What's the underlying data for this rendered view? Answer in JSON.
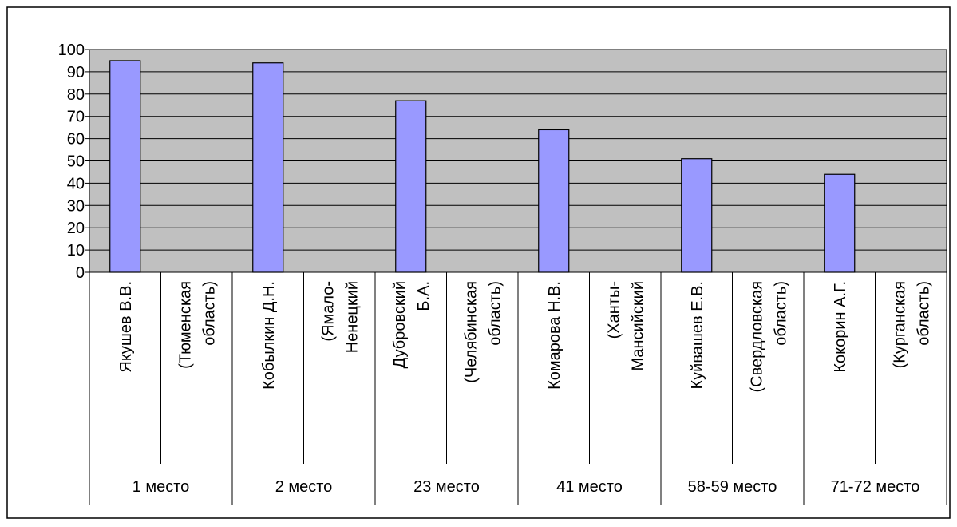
{
  "chart_data": {
    "type": "bar",
    "categories": [
      "Якушев В.В.",
      "(Тюменская область)",
      "Кобылкин Д.Н.",
      "(Ямало-Ненецкий",
      "Дубровский Б.А.",
      "(Челябинская область)",
      "Комарова Н.В.",
      "(Ханты-Мансийский",
      "Куйвашев Е.В.",
      "(Свердловская область)",
      "Кокорин А.Г.",
      "(Курганская область)"
    ],
    "category_lines": [
      [
        "Якушев В.В."
      ],
      [
        "(Тюменская",
        "область)"
      ],
      [
        "Кобылкин Д.Н."
      ],
      [
        "(Ямало-",
        "Ненецкий"
      ],
      [
        "Дубровский",
        "Б.А."
      ],
      [
        "(Челябинская",
        "область)"
      ],
      [
        "Комарова Н.В."
      ],
      [
        "(Ханты-",
        "Мансийский"
      ],
      [
        "Куйвашев Е.В."
      ],
      [
        "(Свердловская",
        "область)"
      ],
      [
        "Кокорин А.Г."
      ],
      [
        "(Курганская",
        "область)"
      ]
    ],
    "groups": [
      "1 место",
      "2 место",
      "23 место",
      "41 место",
      "58-59 место",
      "71-72 место"
    ],
    "values": [
      95,
      null,
      94,
      null,
      77,
      null,
      64,
      null,
      51,
      null,
      44,
      null
    ],
    "yticks": [
      "0",
      "10",
      "20",
      "30",
      "40",
      "50",
      "60",
      "70",
      "80",
      "90",
      "100"
    ],
    "ylim": [
      0,
      100
    ],
    "title": "",
    "xlabel": "",
    "ylabel": "",
    "grid": true,
    "legend": "none",
    "colors": {
      "bar": "#9999ff",
      "plot_background": "#c0c0c0",
      "gridline": "#000000"
    }
  }
}
